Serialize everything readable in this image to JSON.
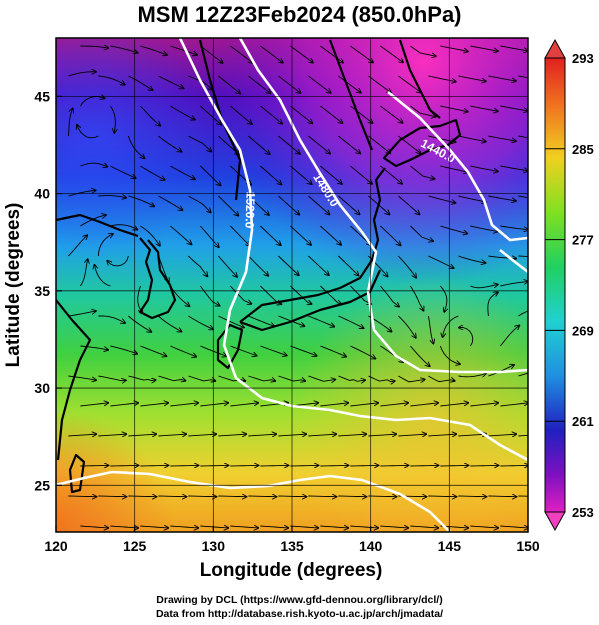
{
  "title": "MSM 12Z23Feb2024 (850.0hPa)",
  "x_axis": {
    "label": "Longitude (degrees)",
    "ticks": [
      "120",
      "125",
      "130",
      "135",
      "140",
      "145",
      "150"
    ]
  },
  "y_axis": {
    "label": "Latitude  (degrees)",
    "ticks": [
      "25",
      "30",
      "35",
      "40",
      "45"
    ]
  },
  "colorbar": {
    "ticks": [
      "293",
      "285",
      "277",
      "269",
      "261",
      "253"
    ]
  },
  "contour_labels": [
    "1440.0",
    "1480.0",
    "1520.0"
  ],
  "credits": {
    "line1": "Drawing by DCL (https://www.gfd-dennou.org/library/dcl/)",
    "line2": "Data from http://database.rish.kyoto-u.ac.jp/arch/jmadata/"
  },
  "colors": {
    "cold": "#e020c0",
    "cool": "#2020d0",
    "mild": "#20c0e0",
    "warm": "#20d040",
    "hot": "#f0c020",
    "contour": "#ffffff",
    "coast": "#000000"
  }
}
